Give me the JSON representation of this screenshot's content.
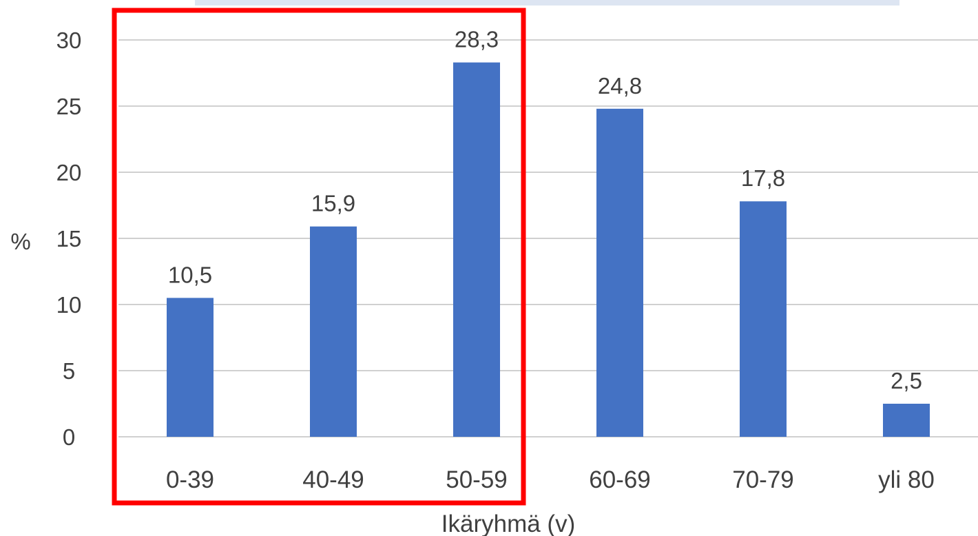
{
  "colors": {
    "bar": "#4472C4",
    "grid": "#d0d0d0",
    "tick_text": "#404040",
    "label_text": "#404040",
    "highlight": "#ff0000",
    "top_band": "#dde5f2"
  },
  "chart_data": {
    "type": "bar",
    "categories": [
      "0-39",
      "40-49",
      "50-59",
      "60-69",
      "70-79",
      "yli 80"
    ],
    "values": [
      10.5,
      15.9,
      28.3,
      24.8,
      17.8,
      2.5
    ],
    "data_labels": [
      "10,5",
      "15,9",
      "28,3",
      "24,8",
      "17,8",
      "2,5"
    ],
    "title": "",
    "xlabel": "Ikäryhmä (v)",
    "ylabel": "%",
    "ylim": [
      0,
      30
    ],
    "yticks": [
      0,
      5,
      10,
      15,
      20,
      25,
      30
    ],
    "grid": true,
    "legend": "none",
    "highlighted_categories": [
      "0-39",
      "40-49",
      "50-59"
    ]
  }
}
